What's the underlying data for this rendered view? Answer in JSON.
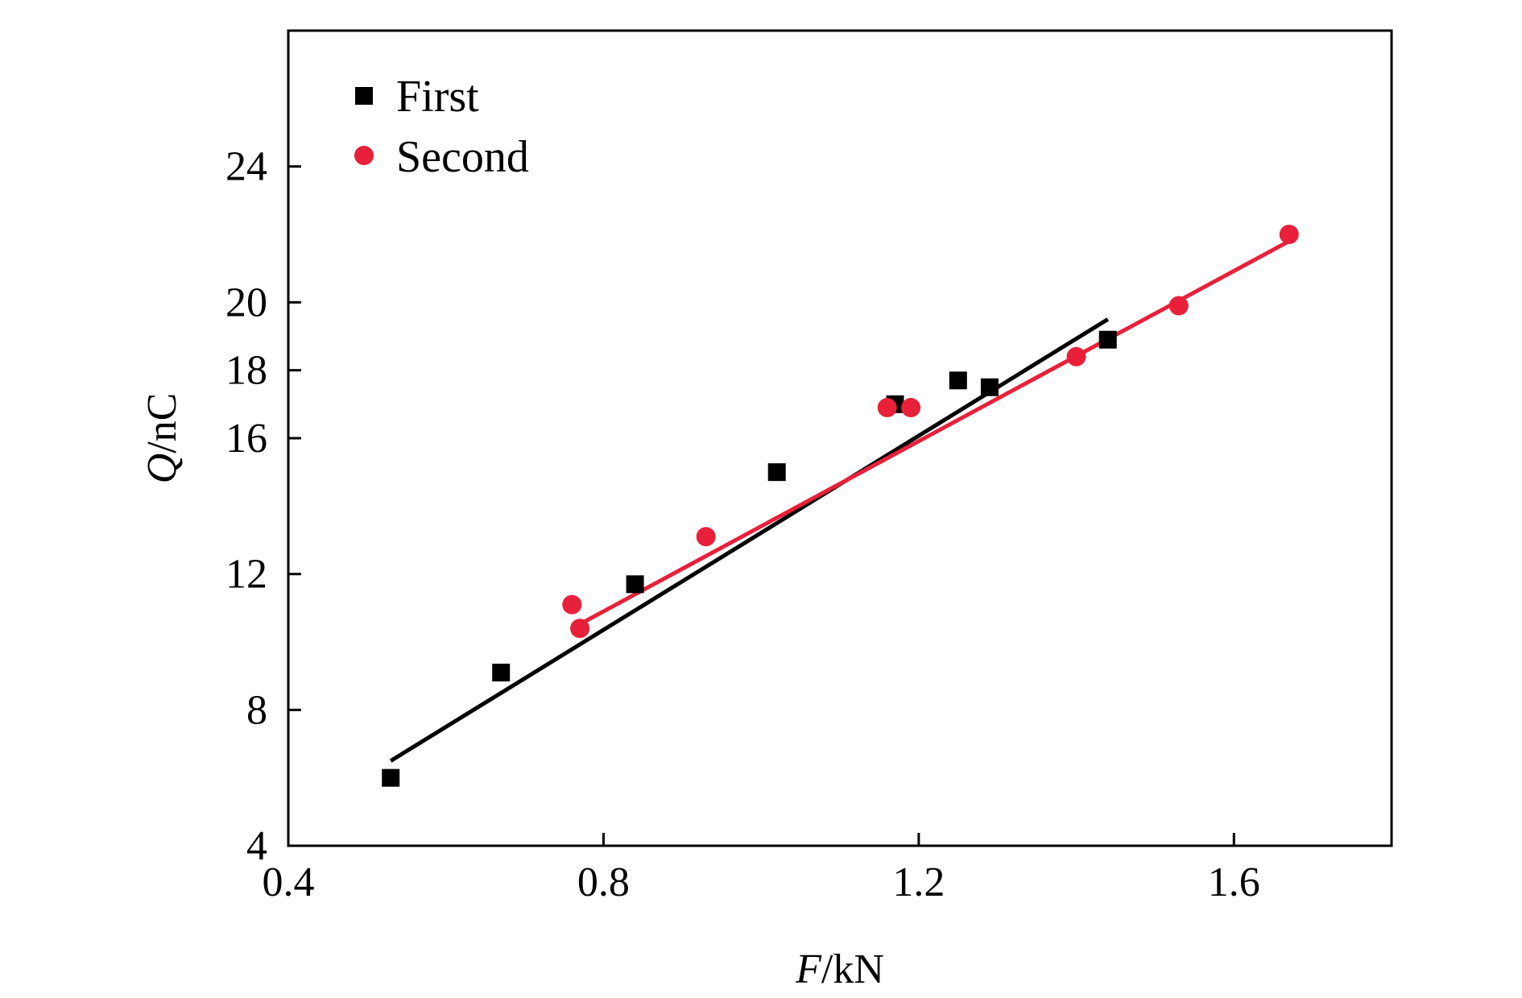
{
  "chart_data": {
    "type": "scatter",
    "xlim": [
      0.4,
      1.8
    ],
    "ylim": [
      4,
      28
    ],
    "x_ticks": [
      "0.4",
      "0.8",
      "1.2",
      "1.6"
    ],
    "y_ticks": [
      "4",
      "8",
      "12",
      "16",
      "18",
      "20",
      "24"
    ],
    "x_tick_values": [
      0.4,
      0.8,
      1.2,
      1.6
    ],
    "y_tick_values": [
      4,
      8,
      12,
      16,
      18,
      20,
      24
    ],
    "xlabel": {
      "var": "F",
      "unit": "/kN"
    },
    "ylabel": {
      "var": "Q",
      "unit": "/nC"
    },
    "legend_position": "top-left",
    "grid": false,
    "series": [
      {
        "name": "First",
        "marker": "square",
        "color": "#000000",
        "points": [
          {
            "x": 0.53,
            "y": 6.0
          },
          {
            "x": 0.67,
            "y": 9.1
          },
          {
            "x": 0.84,
            "y": 11.7
          },
          {
            "x": 1.02,
            "y": 15.0
          },
          {
            "x": 1.17,
            "y": 17.0
          },
          {
            "x": 1.25,
            "y": 17.7
          },
          {
            "x": 1.29,
            "y": 17.5
          },
          {
            "x": 1.44,
            "y": 18.9
          }
        ],
        "fit": {
          "x0": 0.53,
          "y0": 6.5,
          "x1": 1.44,
          "y1": 19.5
        }
      },
      {
        "name": "Second",
        "marker": "circle",
        "color": "#e8203a",
        "points": [
          {
            "x": 0.76,
            "y": 11.1
          },
          {
            "x": 0.77,
            "y": 10.4
          },
          {
            "x": 0.93,
            "y": 13.1
          },
          {
            "x": 1.16,
            "y": 16.9
          },
          {
            "x": 1.19,
            "y": 16.9
          },
          {
            "x": 1.4,
            "y": 18.4
          },
          {
            "x": 1.53,
            "y": 19.9
          },
          {
            "x": 1.67,
            "y": 22.0
          }
        ],
        "fit": {
          "x0": 0.76,
          "y0": 10.4,
          "x1": 1.67,
          "y1": 21.8
        }
      }
    ]
  }
}
